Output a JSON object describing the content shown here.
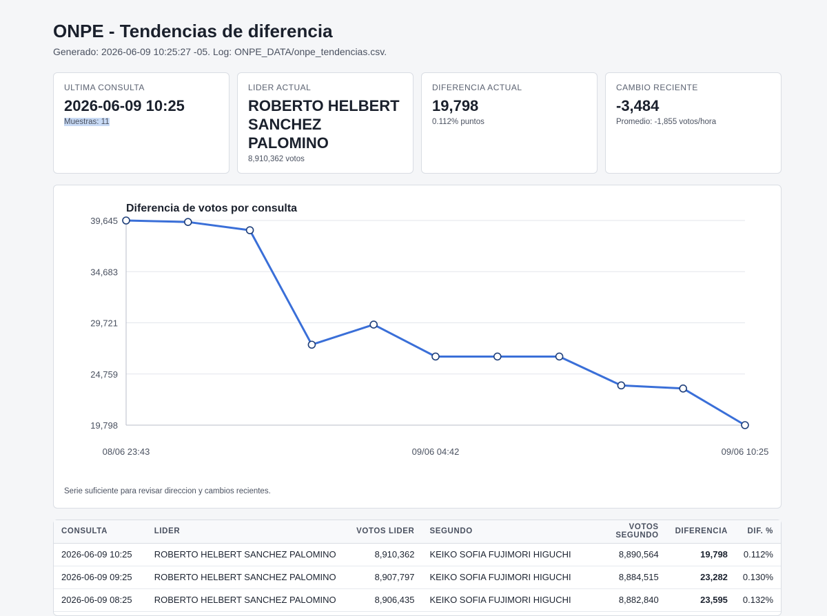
{
  "header": {
    "title": "ONPE - Tendencias de diferencia",
    "subtitle": "Generado: 2026-06-09 10:25:27 -05. Log: ONPE_DATA/onpe_tendencias.csv."
  },
  "cards": [
    {
      "label": "ULTIMA CONSULTA",
      "value": "2026-06-09 10:25",
      "note": "Muestras: 11"
    },
    {
      "label": "LIDER ACTUAL",
      "value": "ROBERTO HELBERT SANCHEZ PALOMINO",
      "note": "8,910,362 votos"
    },
    {
      "label": "DIFERENCIA ACTUAL",
      "value": "19,798",
      "note": "0.112% puntos"
    },
    {
      "label": "CAMBIO RECIENTE",
      "value": "-3,484",
      "note": "Promedio: -1,855 votos/hora"
    }
  ],
  "chart_data": {
    "type": "line",
    "title": "Diferencia de votos por consulta",
    "x_tick_labels": [
      "08/06 23:43",
      "09/06 04:42",
      "09/06 10:25"
    ],
    "y_tick_labels": [
      "39,645",
      "34,683",
      "29,721",
      "24,759",
      "19,798"
    ],
    "ylim": [
      19798,
      39645
    ],
    "values": [
      39645,
      39500,
      38700,
      27600,
      29550,
      26450,
      26450,
      26450,
      23650,
      23350,
      19798
    ],
    "line_color": "#3a6fd8",
    "grid": true,
    "note": "Serie suficiente para revisar direccion y cambios recientes."
  },
  "table": {
    "columns": [
      "CONSULTA",
      "LIDER",
      "VOTOS LIDER",
      "SEGUNDO",
      "VOTOS SEGUNDO",
      "DIFERENCIA",
      "DIF. %"
    ],
    "rows": [
      [
        "2026-06-09 10:25",
        "ROBERTO HELBERT SANCHEZ PALOMINO",
        "8,910,362",
        "KEIKO SOFIA FUJIMORI HIGUCHI",
        "8,890,564",
        "19,798",
        "0.112%"
      ],
      [
        "2026-06-09 09:25",
        "ROBERTO HELBERT SANCHEZ PALOMINO",
        "8,907,797",
        "KEIKO SOFIA FUJIMORI HIGUCHI",
        "8,884,515",
        "23,282",
        "0.130%"
      ],
      [
        "2026-06-09 08:25",
        "ROBERTO HELBERT SANCHEZ PALOMINO",
        "8,906,435",
        "KEIKO SOFIA FUJIMORI HIGUCHI",
        "8,882,840",
        "23,595",
        "0.132%"
      ]
    ]
  }
}
